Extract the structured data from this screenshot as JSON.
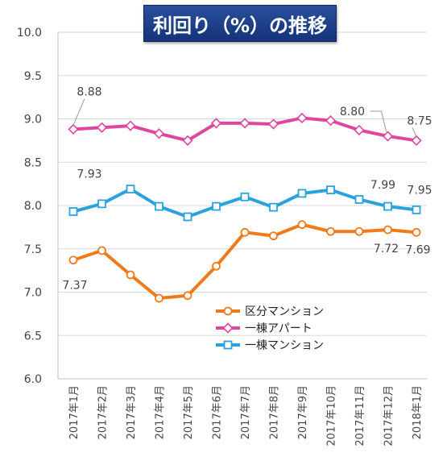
{
  "chart_data": {
    "type": "line",
    "title": "利回り（%）の推移",
    "categories": [
      "2017年1月",
      "2017年2月",
      "2017年3月",
      "2017年4月",
      "2017年5月",
      "2017年6月",
      "2017年7月",
      "2017年8月",
      "2017年9月",
      "2017年10月",
      "2017年11月",
      "2017年12月",
      "2018年1月"
    ],
    "series": [
      {
        "name": "区分マンション",
        "color": "#ee7a1a",
        "marker": "circle",
        "values": [
          7.37,
          7.48,
          7.2,
          6.93,
          6.96,
          7.3,
          7.69,
          7.65,
          7.78,
          7.7,
          7.7,
          7.72,
          7.69
        ]
      },
      {
        "name": "一棟アパート",
        "color": "#e0469f",
        "marker": "diamond",
        "values": [
          8.88,
          8.9,
          8.92,
          8.83,
          8.75,
          8.95,
          8.95,
          8.94,
          9.01,
          8.98,
          8.87,
          8.8,
          8.75
        ]
      },
      {
        "name": "一棟マンション",
        "color": "#2ba2dc",
        "marker": "square",
        "values": [
          7.93,
          8.02,
          8.19,
          7.99,
          7.87,
          7.99,
          8.1,
          7.98,
          8.14,
          8.18,
          8.07,
          7.99,
          7.95
        ]
      }
    ],
    "ylim": [
      6.0,
      10.0
    ],
    "yticks": [
      "6.0",
      "6.5",
      "7.0",
      "7.5",
      "8.0",
      "8.5",
      "9.0",
      "9.5",
      "10.0"
    ],
    "grid": true,
    "legend_position": "lower-right",
    "annotations": [
      {
        "series": 0,
        "index": 0,
        "text": "7.37"
      },
      {
        "series": 0,
        "index": 11,
        "text": "7.72"
      },
      {
        "series": 0,
        "index": 12,
        "text": "7.69"
      },
      {
        "series": 1,
        "index": 0,
        "text": "8.88"
      },
      {
        "series": 1,
        "index": 11,
        "text": "8.80"
      },
      {
        "series": 1,
        "index": 12,
        "text": "8.75"
      },
      {
        "series": 2,
        "index": 0,
        "text": "7.93"
      },
      {
        "series": 2,
        "index": 11,
        "text": "7.99"
      },
      {
        "series": 2,
        "index": 12,
        "text": "7.95"
      }
    ]
  }
}
